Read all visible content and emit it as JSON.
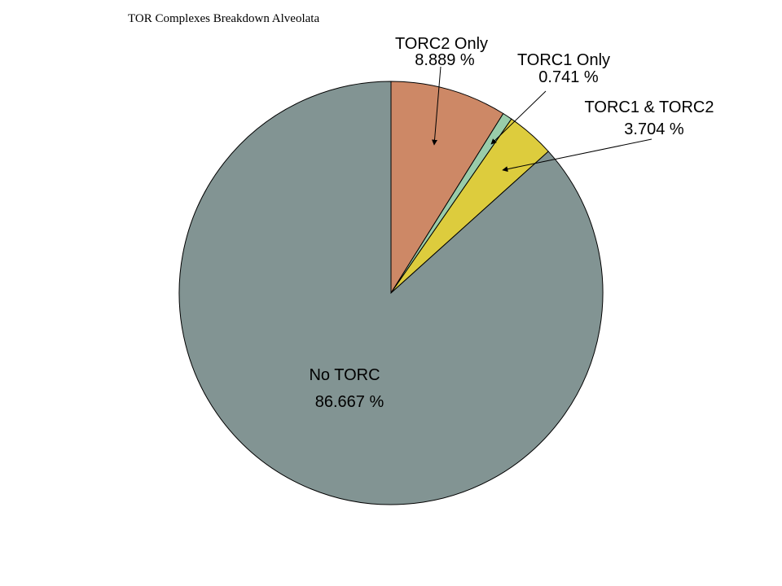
{
  "chart_data": {
    "type": "pie",
    "title": "TOR Complexes Breakdown Alveolata",
    "start_angle": "top",
    "direction": "clockwise",
    "slices": [
      {
        "label": "TORC2 Only",
        "value": 8.889,
        "value_label": "8.889 %",
        "color": "#cd8866"
      },
      {
        "label": "TORC1 Only",
        "value": 0.741,
        "value_label": "0.741 %",
        "color": "#99ccaa"
      },
      {
        "label": "TORC1 & TORC2",
        "value": 3.704,
        "value_label": "3.704 %",
        "color": "#ddcc3d"
      },
      {
        "label": "No TORC",
        "value": 86.667,
        "value_label": "86.667 %",
        "color": "#829493"
      }
    ]
  }
}
